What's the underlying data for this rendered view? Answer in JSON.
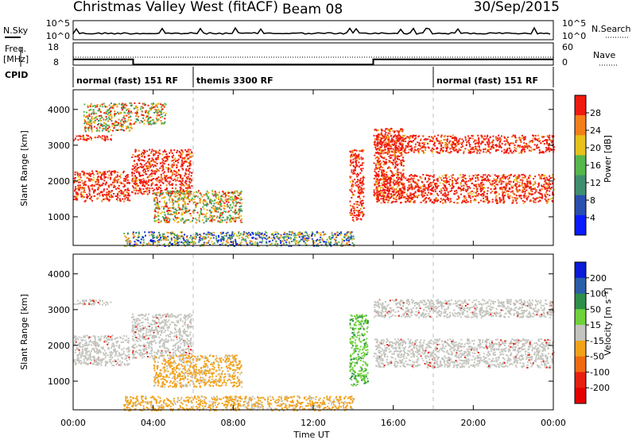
{
  "header": {
    "station": "Christmas Valley West (fitACF)",
    "beam": "Beam 08",
    "date": "30/Sep/2015"
  },
  "strip": {
    "nsky_label": "N.Sky",
    "nsearch_label": "N.Search",
    "nsky_ticks": [
      "10^5",
      "10^0"
    ],
    "nsky_ticks_right": [
      "10^5",
      "10^0"
    ],
    "freq_label_1": "Freq.",
    "freq_label_2": "[MHz]",
    "freq_ticks": [
      "18",
      "8"
    ],
    "nave_label": "Nave",
    "nave_ticks": [
      "60",
      "0"
    ],
    "cpid_label": "CPID",
    "cpid_segments": [
      {
        "label": "normal (fast) 151 RF",
        "start_h": 0.0,
        "end_h": 6.0
      },
      {
        "label": "themis 3300 RF",
        "start_h": 6.0,
        "end_h": 18.0
      },
      {
        "label": "normal (fast) 151 RF",
        "start_h": 18.0,
        "end_h": 24.0
      }
    ],
    "freq_mhz": [
      {
        "start_h": 0.0,
        "end_h": 3.0,
        "value": 11.0
      },
      {
        "start_h": 3.0,
        "end_h": 15.0,
        "value": 8.3
      },
      {
        "start_h": 15.0,
        "end_h": 24.0,
        "value": 11.0
      }
    ]
  },
  "chart_data": [
    {
      "type": "heatmap",
      "ylabel": "Slant Range [km]",
      "yticks": [
        "1000",
        "2000",
        "3000",
        "4000"
      ],
      "ylim": [
        200,
        4550
      ],
      "colorbar_label": "Power [dB]",
      "colorbar_ticks": [
        "4",
        "8",
        "12",
        "16",
        "20",
        "24",
        "28"
      ],
      "colorbar_colors": [
        "#0a1cff",
        "#2a4fb0",
        "#3f8f6e",
        "#55b84a",
        "#e6c21a",
        "#f27f1a",
        "#f01a10"
      ],
      "regions": [
        {
          "h0": 0.0,
          "h1": 2.8,
          "r0": 1450,
          "r1": 2300,
          "level": "high"
        },
        {
          "h0": 0.0,
          "h1": 1.9,
          "r0": 3150,
          "r1": 3300,
          "level": "high"
        },
        {
          "h0": 0.5,
          "h1": 2.9,
          "r0": 3400,
          "r1": 4200,
          "level": "mixed"
        },
        {
          "h0": 2.9,
          "h1": 5.9,
          "r0": 1650,
          "r1": 2900,
          "level": "high"
        },
        {
          "h0": 3.0,
          "h1": 4.6,
          "r0": 3600,
          "r1": 4200,
          "level": "mixed"
        },
        {
          "h0": 4.0,
          "h1": 8.4,
          "r0": 850,
          "r1": 1750,
          "level": "mixed"
        },
        {
          "h0": 2.5,
          "h1": 14.0,
          "r0": 200,
          "r1": 600,
          "level": "low"
        },
        {
          "h0": 13.8,
          "h1": 14.5,
          "r0": 900,
          "r1": 2900,
          "level": "high"
        },
        {
          "h0": 15.0,
          "h1": 24.0,
          "r0": 1400,
          "r1": 2200,
          "level": "high"
        },
        {
          "h0": 15.0,
          "h1": 24.0,
          "r0": 2800,
          "r1": 3300,
          "level": "high"
        },
        {
          "h0": 15.0,
          "h1": 16.5,
          "r0": 1500,
          "r1": 3500,
          "level": "high"
        }
      ]
    },
    {
      "type": "heatmap",
      "ylabel": "Slant Range [km]",
      "xlabel": "Time UT",
      "xticks": [
        "00:00",
        "04:00",
        "08:00",
        "12:00",
        "16:00",
        "20:00",
        "00:00"
      ],
      "yticks": [
        "1000",
        "2000",
        "3000",
        "4000"
      ],
      "ylim": [
        200,
        4550
      ],
      "colorbar_label": "Velocity [m s⁻¹]",
      "colorbar_ticks": [
        "200",
        "100",
        "50",
        "15",
        "-15",
        "-50",
        "-100",
        "-200"
      ],
      "colorbar_colors": [
        "#0a1cd8",
        "#2a5ea8",
        "#2e8f4a",
        "#6fd23a",
        "#c4c4bf",
        "#f2a21a",
        "#f06a10",
        "#e82010",
        "#e60000"
      ],
      "regions": [
        {
          "h0": 0.0,
          "h1": 2.8,
          "r0": 1450,
          "r1": 2300,
          "class": "ground"
        },
        {
          "h0": 0.0,
          "h1": 1.9,
          "r0": 3150,
          "r1": 3300,
          "class": "ground"
        },
        {
          "h0": 2.9,
          "h1": 5.9,
          "r0": 1650,
          "r1": 2900,
          "class": "ground"
        },
        {
          "h0": 4.0,
          "h1": 8.4,
          "r0": 850,
          "r1": 1750,
          "class": "negative"
        },
        {
          "h0": 2.5,
          "h1": 14.0,
          "r0": 200,
          "r1": 600,
          "class": "negative"
        },
        {
          "h0": 13.8,
          "h1": 14.7,
          "r0": 900,
          "r1": 2900,
          "class": "positive"
        },
        {
          "h0": 15.0,
          "h1": 24.0,
          "r0": 1400,
          "r1": 2200,
          "class": "ground"
        },
        {
          "h0": 15.0,
          "h1": 24.0,
          "r0": 2800,
          "r1": 3300,
          "class": "ground"
        }
      ]
    }
  ],
  "colors": {
    "power_high": "#f01a10",
    "power_mid": "#f27f1a",
    "power_low": "#3f8f6e",
    "ground_scatter": "#c4c4bf",
    "velocity_neg": "#f2a21a",
    "velocity_pos": "#6fd23a"
  }
}
